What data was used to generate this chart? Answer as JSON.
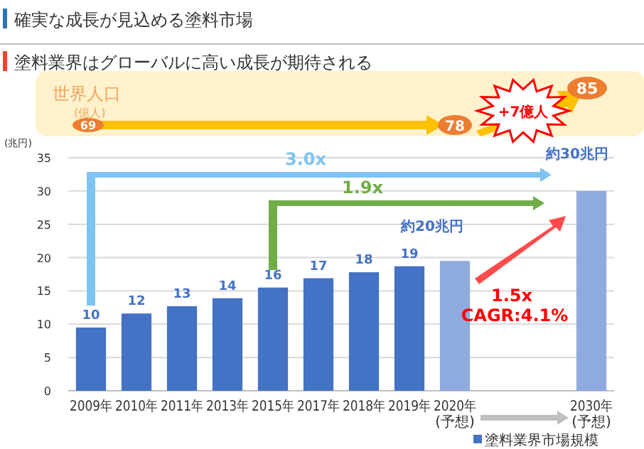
{
  "chart_data": {
    "type": "bar",
    "title": "確実な成長が見込める塗料市場",
    "subtitle": "塗料業界はグローバルに高い成長が期待される",
    "ylabel": "(兆円)",
    "categories": [
      "2009年",
      "2010年",
      "2011年",
      "2013年",
      "2015年",
      "2017年",
      "2018年",
      "2019年",
      "2020年\n(予想)",
      null,
      null,
      "2030年\n(予想)"
    ],
    "series": [
      {
        "name": "塗料業界市場規模",
        "color": "#4472c4",
        "values": [
          9.5,
          11.6,
          12.7,
          13.9,
          15.5,
          16.9,
          17.8,
          18.7,
          19.5,
          null,
          null,
          30
        ],
        "colors": [
          "#4472c4",
          "#4472c4",
          "#4472c4",
          "#4472c4",
          "#4472c4",
          "#4472c4",
          "#4472c4",
          "#4472c4",
          "#8faadc",
          null,
          null,
          "#8faadc"
        ],
        "value_labels": [
          "10",
          "12",
          "13",
          "14",
          "16",
          "17",
          "18",
          "19",
          null,
          null,
          null,
          null
        ]
      }
    ],
    "ylim": [
      0,
      35
    ],
    "yticks": [
      0,
      5,
      10,
      15,
      20,
      25,
      30,
      35
    ],
    "grid": "y",
    "legend": "bottom right",
    "annotations": [
      {
        "text": "約20兆円",
        "x": "2020年\n(予想)",
        "y": 19.5
      },
      {
        "text": "約30兆円",
        "x": "2030年\n(予想)",
        "y": 30
      },
      "3.0x",
      "1.9x",
      "1.5x",
      "CAGR:4.1%",
      "世界人口",
      "(億人)",
      "69",
      "78",
      "85",
      "+7億人"
    ]
  }
}
